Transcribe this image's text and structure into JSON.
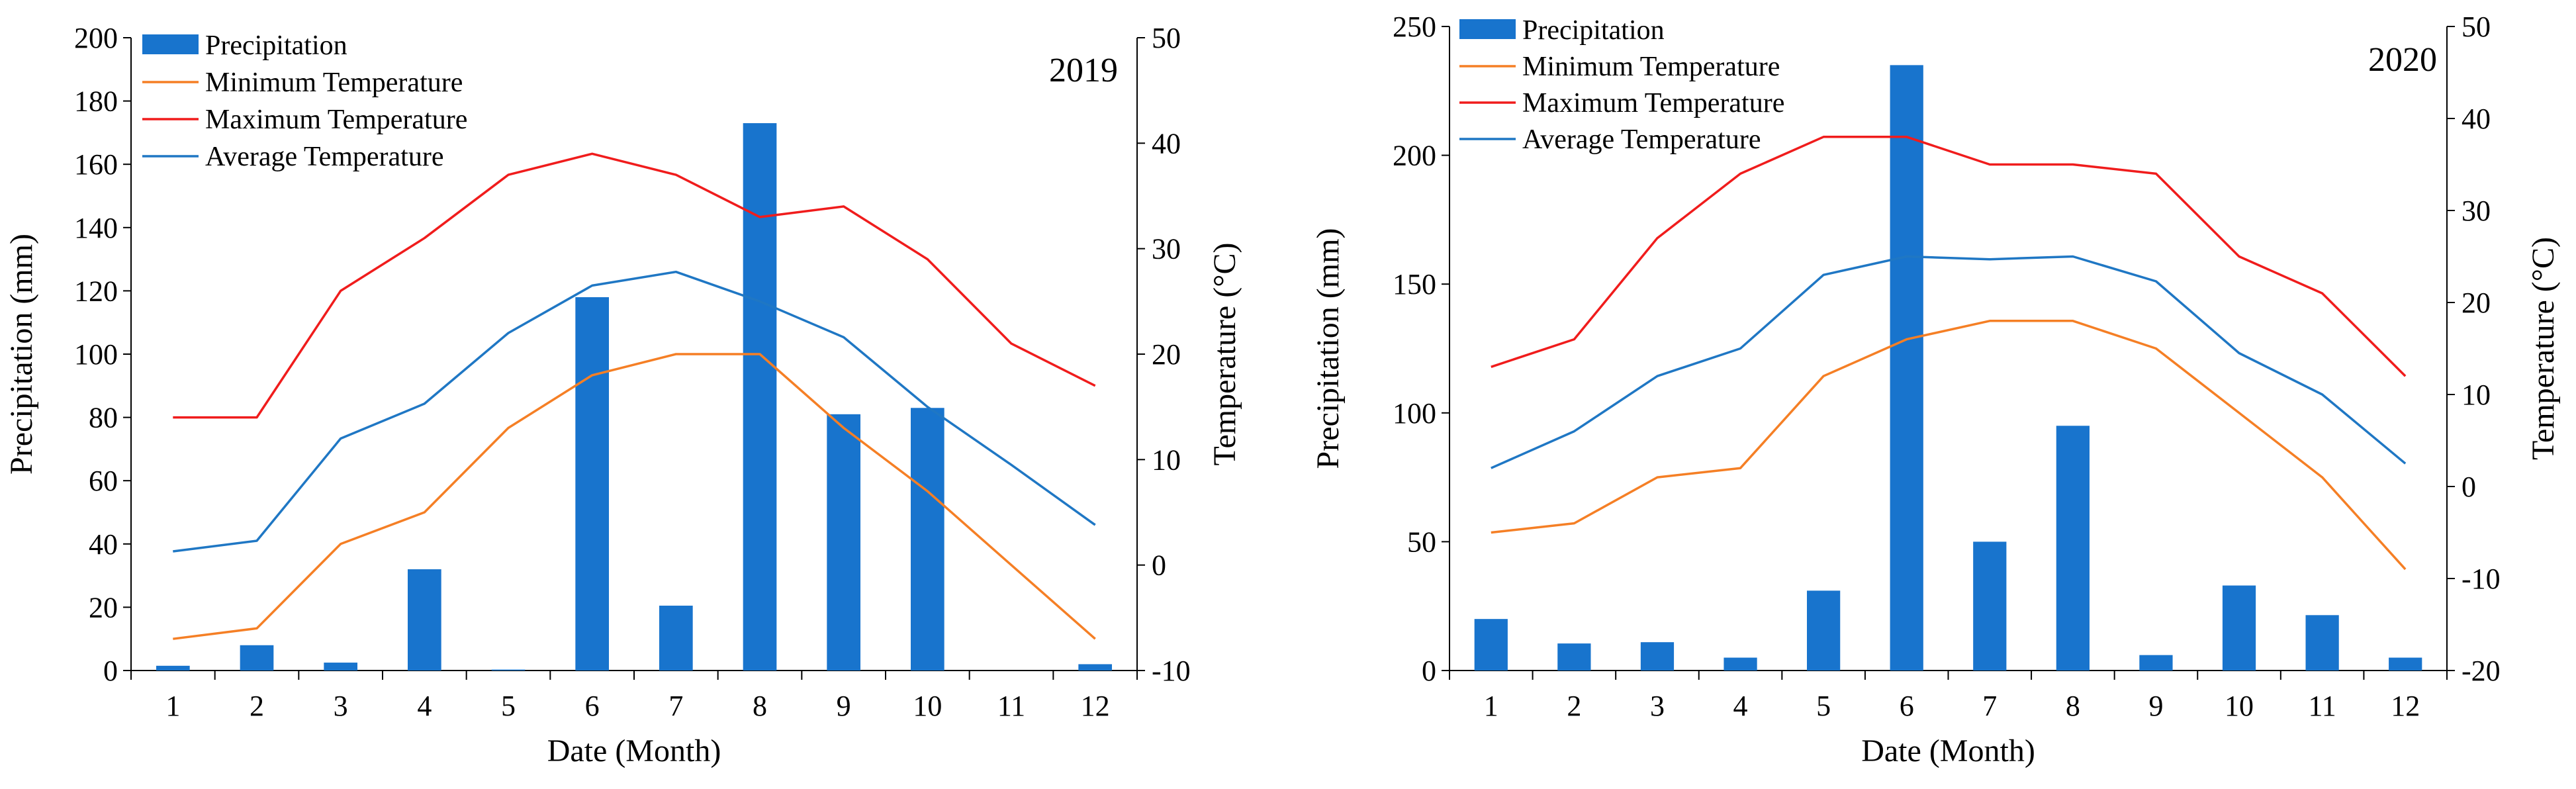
{
  "colors": {
    "precip": "#1874CD",
    "min": "#F57F25",
    "max": "#F01C1C",
    "avg": "#1F77C4"
  },
  "chart_data": [
    {
      "type": "bar+line",
      "title": "2019",
      "xlabel": "Date (Month)",
      "ylabel_left": "Precipitation (mm)",
      "ylabel_right": "Temperature (°C)",
      "categories": [
        "1",
        "2",
        "3",
        "4",
        "5",
        "6",
        "7",
        "8",
        "9",
        "10",
        "11",
        "12"
      ],
      "ylim_left": [
        0,
        200
      ],
      "yticks_left": [
        "0",
        "20",
        "40",
        "60",
        "80",
        "100",
        "120",
        "140",
        "160",
        "180",
        "200"
      ],
      "ylim_right": [
        -10,
        50
      ],
      "yticks_right": [
        "-10",
        "0",
        "10",
        "20",
        "30",
        "40",
        "50"
      ],
      "legend": [
        "Precipitation",
        "Minimum Temperature",
        "Maximum Temperature",
        "Average Temperature"
      ],
      "legend_position": "top-left",
      "precipitation": [
        1.5,
        8,
        2.5,
        32,
        0.3,
        118,
        20.5,
        173,
        81,
        83,
        0,
        2
      ],
      "min_temp": [
        -7,
        -6,
        2,
        5,
        13,
        18,
        20,
        20,
        13,
        7,
        0,
        -7
      ],
      "max_temp": [
        14,
        14,
        26,
        31,
        37,
        39,
        37,
        33,
        34,
        29,
        21,
        17
      ],
      "avg_temp": [
        1.3,
        2.3,
        12,
        15.3,
        22,
        26.5,
        27.8,
        25,
        21.6,
        15,
        9.5,
        3.8
      ]
    },
    {
      "type": "bar+line",
      "title": "2020",
      "xlabel": "Date (Month)",
      "ylabel_left": "Precipitation (mm)",
      "ylabel_right": "Temperature (°C)",
      "categories": [
        "1",
        "2",
        "3",
        "4",
        "5",
        "6",
        "7",
        "8",
        "9",
        "10",
        "11",
        "12"
      ],
      "ylim_left": [
        0,
        250
      ],
      "yticks_left": [
        "0",
        "50",
        "100",
        "150",
        "200",
        "250"
      ],
      "ylim_right": [
        -20,
        50
      ],
      "yticks_right": [
        "-20",
        "-10",
        "0",
        "10",
        "20",
        "30",
        "40",
        "50"
      ],
      "legend": [
        "Precipitation",
        "Minimum Temperature",
        "Maximum Temperature",
        "Average Temperature"
      ],
      "legend_position": "top-left",
      "precipitation": [
        20,
        10.5,
        11,
        5,
        31,
        235,
        50,
        95,
        6,
        33,
        21.5,
        5
      ],
      "min_temp": [
        -5,
        -4,
        1,
        2,
        12,
        16,
        18,
        18,
        15,
        8,
        1,
        -9
      ],
      "max_temp": [
        13,
        16,
        27,
        34,
        38,
        38,
        35,
        35,
        34,
        25,
        21,
        12
      ],
      "avg_temp": [
        2,
        6,
        12,
        15,
        23,
        25,
        24.7,
        25,
        22.3,
        14.5,
        10,
        2.5
      ]
    }
  ]
}
